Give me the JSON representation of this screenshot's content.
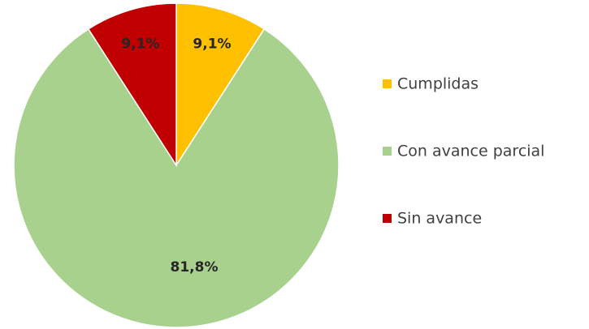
{
  "chart_data": {
    "type": "pie",
    "categories": [
      "Cumplidas",
      "Con avance parcial",
      "Sin avance"
    ],
    "values": [
      9.1,
      81.8,
      9.1
    ],
    "labels": [
      "9,1%",
      "81,8%",
      "9,1%"
    ],
    "colors": [
      "#FFC000",
      "#A9D18E",
      "#C00000"
    ],
    "label_colors": [
      "#262626",
      "#262626",
      "#262626"
    ],
    "start_angle_deg": 0,
    "direction": "clockwise",
    "legend_position": "right"
  }
}
